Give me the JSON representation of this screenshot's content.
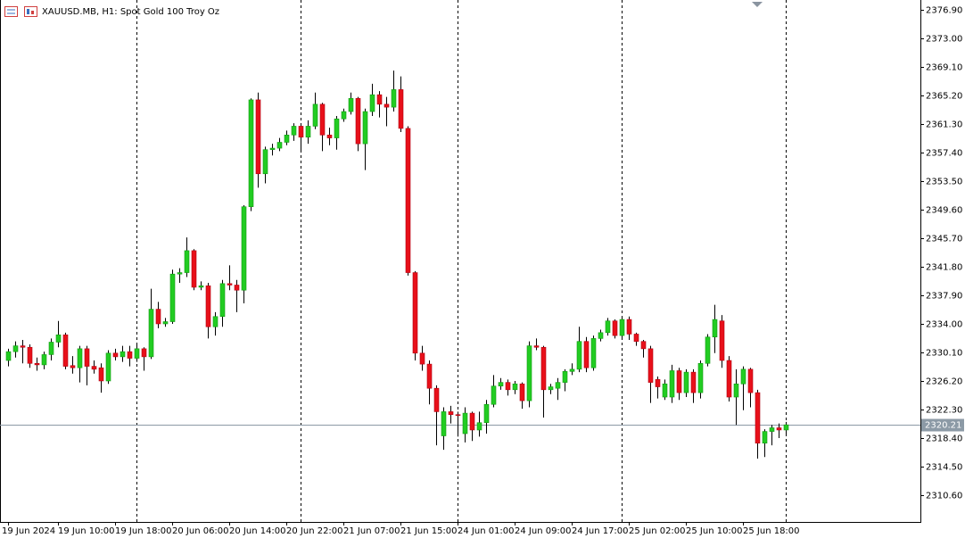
{
  "chart_data": {
    "type": "candlestick",
    "title": "XAUUSD.MB, H1:  Spot Gold 100 Troy Oz",
    "categories": [
      "19 Jun 2024",
      null,
      null,
      null,
      null,
      null,
      null,
      "19 Jun 10:00",
      null,
      null,
      null,
      null,
      null,
      null,
      null,
      "19 Jun 18:00",
      null,
      null,
      null,
      null,
      null,
      null,
      null,
      "20 Jun 06:00",
      null,
      null,
      null,
      null,
      null,
      null,
      null,
      "20 Jun 14:00",
      null,
      null,
      null,
      null,
      null,
      null,
      null,
      "20 Jun 22:00",
      null,
      null,
      null,
      null,
      null,
      null,
      null,
      "21 Jun 07:00",
      null,
      null,
      null,
      null,
      null,
      null,
      null,
      "21 Jun 15:00",
      null,
      null,
      null,
      null,
      null,
      null,
      null,
      "24 Jun 01:00",
      null,
      null,
      null,
      null,
      null,
      null,
      null,
      "24 Jun 09:00",
      null,
      null,
      null,
      null,
      null,
      null,
      null,
      "24 Jun 17:00",
      null,
      null,
      null,
      null,
      null,
      null,
      null,
      "25 Jun 02:00",
      null,
      null,
      null,
      null,
      null,
      null,
      null,
      "25 Jun 10:00",
      null,
      null,
      null,
      null,
      null,
      null,
      null,
      "25 Jun 18:00",
      null,
      null,
      null,
      null,
      null,
      null
    ],
    "open": [
      2329.0,
      2330.2,
      2331.0,
      2330.8,
      2328.6,
      2328.4,
      2329.8,
      2331.5,
      2332.5,
      2328.3,
      2328.0,
      2330.6,
      2328.2,
      2328.0,
      2326.2,
      2330.0,
      2329.5,
      2330.2,
      2329.3,
      2330.6,
      2329.5,
      2336.0,
      2334.0,
      2334.3,
      2340.8,
      2341.0,
      2344.0,
      2339.0,
      2339.2,
      2333.6,
      2335.0,
      2339.5,
      2339.3,
      2338.6,
      2350.0,
      2364.6,
      2354.5,
      2357.8,
      2358.0,
      2358.8,
      2359.8,
      2361.0,
      2359.5,
      2361.0,
      2364.0,
      2359.8,
      2359.4,
      2362.0,
      2363.0,
      2364.8,
      2358.6,
      2363.0,
      2365.3,
      2364.0,
      2363.6,
      2366.0,
      2360.7,
      2341.0,
      2330.0,
      2328.5,
      2325.2,
      2318.7,
      2322.0,
      2321.6,
      2319.0,
      2321.8,
      2319.5,
      2320.5,
      2323.0,
      2325.5,
      2326.0,
      2325.0,
      2325.8,
      2323.5,
      2331.0,
      2330.8,
      2325.0,
      2325.2,
      2326.0,
      2327.5,
      2327.8,
      2331.6,
      2328.0,
      2332.0,
      2332.8,
      2334.4,
      2332.4,
      2334.6,
      2332.6,
      2331.6,
      2330.6,
      2326.4,
      2324.0,
      2324.0,
      2327.6,
      2324.6,
      2327.4,
      2324.6,
      2328.6,
      2332.2,
      2334.4,
      2329.0,
      2324.0,
      2325.8,
      2327.8,
      2324.6,
      2317.7,
      2319.3,
      2319.8,
      2319.5
    ],
    "high": [
      2330.6,
      2331.6,
      2331.8,
      2331.2,
      2329.4,
      2330.2,
      2332.0,
      2334.4,
      2332.8,
      2329.6,
      2331.0,
      2331.0,
      2329.0,
      2328.6,
      2330.4,
      2330.6,
      2331.0,
      2331.0,
      2331.2,
      2330.8,
      2338.8,
      2337.0,
      2334.8,
      2341.4,
      2341.6,
      2345.8,
      2344.2,
      2339.8,
      2339.6,
      2335.6,
      2340.0,
      2342.0,
      2340.0,
      2350.2,
      2364.8,
      2365.6,
      2358.2,
      2358.6,
      2359.4,
      2360.4,
      2361.4,
      2361.4,
      2361.8,
      2365.6,
      2364.2,
      2360.8,
      2362.4,
      2363.4,
      2365.6,
      2365.0,
      2363.4,
      2366.8,
      2365.8,
      2365.0,
      2368.6,
      2367.8,
      2361.0,
      2341.2,
      2331.0,
      2329.0,
      2325.6,
      2322.6,
      2322.8,
      2322.0,
      2322.6,
      2322.0,
      2322.0,
      2323.6,
      2327.0,
      2326.6,
      2326.4,
      2326.2,
      2326.0,
      2331.6,
      2332.0,
      2331.0,
      2325.8,
      2326.6,
      2327.8,
      2328.6,
      2333.6,
      2332.2,
      2332.4,
      2333.2,
      2334.8,
      2334.6,
      2334.8,
      2335.0,
      2332.8,
      2331.8,
      2331.0,
      2326.8,
      2326.4,
      2328.4,
      2328.0,
      2327.8,
      2327.8,
      2329.0,
      2332.6,
      2336.6,
      2335.2,
      2329.6,
      2327.8,
      2328.2,
      2328.0,
      2325.0,
      2319.6,
      2320.2,
      2320.4,
      2320.6
    ],
    "low": [
      2328.2,
      2329.4,
      2328.6,
      2328.0,
      2327.6,
      2327.8,
      2329.0,
      2330.8,
      2327.8,
      2327.2,
      2326.0,
      2325.6,
      2327.2,
      2324.6,
      2325.8,
      2329.0,
      2328.8,
      2328.2,
      2328.8,
      2327.6,
      2329.2,
      2333.4,
      2333.6,
      2334.0,
      2339.6,
      2340.4,
      2338.6,
      2338.6,
      2332.0,
      2332.4,
      2333.6,
      2338.6,
      2335.6,
      2336.8,
      2349.4,
      2352.6,
      2353.2,
      2357.0,
      2357.6,
      2358.4,
      2359.0,
      2357.4,
      2358.6,
      2360.6,
      2357.6,
      2358.4,
      2357.8,
      2361.6,
      2362.6,
      2357.6,
      2355.0,
      2362.4,
      2362.2,
      2361.0,
      2363.0,
      2360.2,
      2340.6,
      2329.0,
      2327.6,
      2323.0,
      2317.4,
      2316.8,
      2320.4,
      2318.6,
      2317.8,
      2318.0,
      2318.6,
      2319.0,
      2322.6,
      2325.0,
      2324.2,
      2324.4,
      2322.4,
      2322.6,
      2330.4,
      2321.2,
      2324.4,
      2323.6,
      2324.8,
      2327.0,
      2327.4,
      2327.4,
      2327.6,
      2331.6,
      2332.4,
      2332.0,
      2332.0,
      2331.8,
      2331.0,
      2329.4,
      2323.2,
      2323.8,
      2323.6,
      2323.2,
      2323.6,
      2324.0,
      2323.2,
      2323.8,
      2328.2,
      2330.0,
      2328.0,
      2323.4,
      2320.2,
      2322.2,
      2322.6,
      2315.6,
      2315.8,
      2317.4,
      2318.4,
      2318.8
    ],
    "close": [
      2330.2,
      2331.0,
      2330.8,
      2328.6,
      2328.4,
      2329.8,
      2331.5,
      2332.5,
      2328.2,
      2328.0,
      2330.6,
      2328.2,
      2327.8,
      2326.2,
      2330.0,
      2329.5,
      2330.2,
      2329.3,
      2330.6,
      2329.5,
      2336.0,
      2334.0,
      2334.3,
      2340.8,
      2341.0,
      2344.0,
      2339.0,
      2339.2,
      2333.6,
      2335.0,
      2339.5,
      2339.3,
      2338.6,
      2350.0,
      2364.6,
      2354.5,
      2357.8,
      2358.0,
      2358.8,
      2359.8,
      2361.0,
      2359.5,
      2361.0,
      2364.0,
      2359.8,
      2359.4,
      2362.0,
      2363.0,
      2364.8,
      2358.6,
      2363.0,
      2365.3,
      2364.0,
      2363.6,
      2366.0,
      2360.7,
      2341.0,
      2330.0,
      2328.5,
      2325.2,
      2322.0,
      2322.0,
      2321.6,
      2321.5,
      2321.8,
      2319.5,
      2320.5,
      2323.0,
      2325.5,
      2326.0,
      2325.0,
      2325.8,
      2323.5,
      2331.0,
      2330.8,
      2325.0,
      2325.4,
      2326.0,
      2327.5,
      2327.8,
      2331.6,
      2328.0,
      2332.0,
      2332.8,
      2334.4,
      2332.4,
      2334.6,
      2332.6,
      2331.6,
      2330.6,
      2326.0,
      2325.4,
      2325.8,
      2327.6,
      2324.6,
      2327.4,
      2324.6,
      2328.6,
      2332.2,
      2334.6,
      2329.0,
      2324.0,
      2325.8,
      2327.8,
      2324.6,
      2317.7,
      2319.3,
      2319.8,
      2319.5,
      2320.21
    ],
    "up_color": "#22cc22",
    "down_color": "#e8101a",
    "current_price": 2320.21,
    "ylim": [
      2306.94,
      2378.24
    ],
    "yticks": [
      {
        "value": 2376.9,
        "label": "2376.90"
      },
      {
        "value": 2373.0,
        "label": "2373.00"
      },
      {
        "value": 2369.1,
        "label": "2369.10"
      },
      {
        "value": 2365.2,
        "label": "2365.20"
      },
      {
        "value": 2361.3,
        "label": "2361.30"
      },
      {
        "value": 2357.4,
        "label": "2357.40"
      },
      {
        "value": 2353.5,
        "label": "2353.50"
      },
      {
        "value": 2349.6,
        "label": "2349.60"
      },
      {
        "value": 2345.7,
        "label": "2345.70"
      },
      {
        "value": 2341.8,
        "label": "2341.80"
      },
      {
        "value": 2337.9,
        "label": "2337.90"
      },
      {
        "value": 2334.0,
        "label": "2334.00"
      },
      {
        "value": 2330.1,
        "label": "2330.10"
      },
      {
        "value": 2326.2,
        "label": "2326.20"
      },
      {
        "value": 2322.3,
        "label": "2322.30"
      },
      {
        "value": 2318.4,
        "label": "2318.40"
      },
      {
        "value": 2314.5,
        "label": "2314.50"
      },
      {
        "value": 2310.6,
        "label": "2310.60"
      }
    ]
  }
}
